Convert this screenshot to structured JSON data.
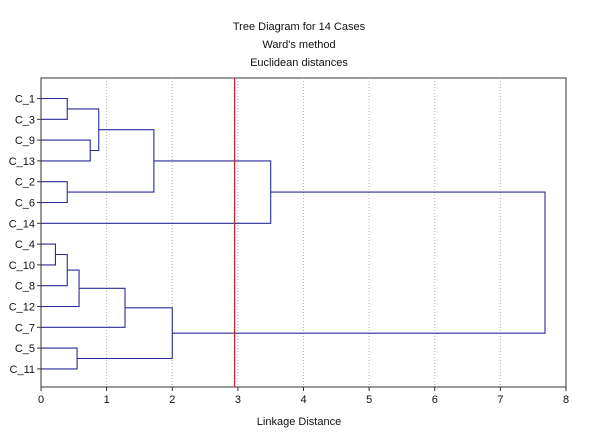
{
  "chart_data": {
    "type": "dendrogram",
    "title": "Tree Diagram for 14 Cases",
    "subtitle1": "Ward's method",
    "subtitle2": "Euclidean distances",
    "xlabel": "Linkage Distance",
    "xlim": [
      0,
      8
    ],
    "xticks": [
      "0",
      "1",
      "2",
      "3",
      "4",
      "5",
      "6",
      "7",
      "8"
    ],
    "grid": "vertical dotted",
    "leaves": [
      "C_1",
      "C_3",
      "C_9",
      "C_13",
      "C_2",
      "C_6",
      "C_14",
      "C_4",
      "C_10",
      "C_8",
      "C_12",
      "C_7",
      "C_5",
      "C_11"
    ],
    "merges": [
      {
        "a": "C_1",
        "b": "C_3",
        "distance": 0.4
      },
      {
        "a": "C_9",
        "b": "C_13",
        "distance": 0.75
      },
      {
        "a": "(C_1,C_3)",
        "b": "(C_9,C_13)",
        "distance": 0.88
      },
      {
        "a": "C_2",
        "b": "C_6",
        "distance": 0.4
      },
      {
        "a": "(C_1,C_3,C_9,C_13)",
        "b": "(C_2,C_6)",
        "distance": 1.72
      },
      {
        "a": "(C_1..C_6)",
        "b": "C_14",
        "distance": 3.5
      },
      {
        "a": "C_4",
        "b": "C_10",
        "distance": 0.22
      },
      {
        "a": "(C_4,C_10)",
        "b": "C_8",
        "distance": 0.4
      },
      {
        "a": "(C_4,C_10,C_8)",
        "b": "C_12",
        "distance": 0.58
      },
      {
        "a": "(C_4,C_10,C_8,C_12)",
        "b": "C_7",
        "distance": 1.28
      },
      {
        "a": "C_5",
        "b": "C_11",
        "distance": 0.55
      },
      {
        "a": "(C_4..C_7)",
        "b": "(C_5,C_11)",
        "distance": 2.0
      },
      {
        "a": "cluster A",
        "b": "cluster B",
        "distance": 7.68
      }
    ],
    "cut_line": 2.95,
    "colors": {
      "branches": "#2b2b9a",
      "cut_line": "#c0282d",
      "grid": "#b4b4b4",
      "frame": "#333333"
    }
  }
}
